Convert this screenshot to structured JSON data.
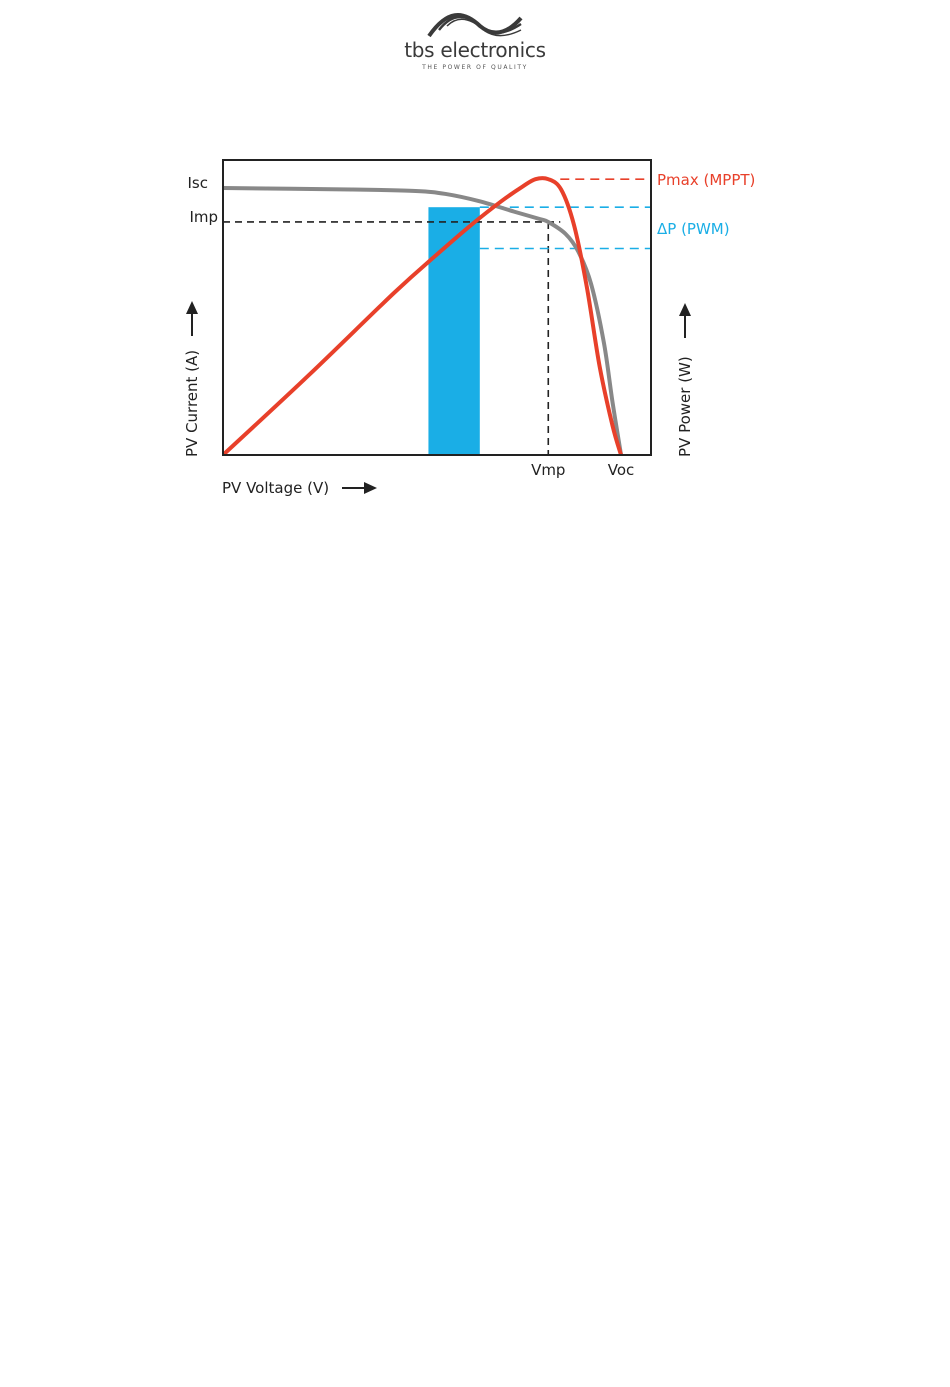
{
  "logo": {
    "name": "tbs electronics",
    "tagline": "THE POWER OF QUALITY"
  },
  "colors": {
    "current_curve": "#888888",
    "power_curve": "#e8402a",
    "pwm_band": "#1aaee6",
    "dashed_black": "#222222"
  },
  "chart_data": {
    "type": "line",
    "title": "",
    "xlabel": "PV Voltage (V)",
    "ylabel_left": "PV Current (A)",
    "ylabel_right": "PV Power (W)",
    "x_ticks": [
      "Vmp",
      "Voc"
    ],
    "y_ticks_left": [
      "Isc",
      "Imp"
    ],
    "annotations": {
      "pmax": "Pmax (MPPT)",
      "delta_p": "ΔP (PWM)"
    },
    "grid": false,
    "series": [
      {
        "key": "current",
        "x": [
          0,
          0.3,
          0.45,
          0.52,
          0.6,
          0.68,
          0.74,
          0.76,
          0.8,
          0.83,
          0.86,
          0.89,
          0.91,
          0.93
        ],
        "y": [
          0.905,
          0.9,
          0.895,
          0.885,
          0.86,
          0.825,
          0.8,
          0.79,
          0.75,
          0.69,
          0.58,
          0.38,
          0.18,
          0.0
        ]
      },
      {
        "key": "power",
        "x": [
          0,
          0.2,
          0.4,
          0.5,
          0.58,
          0.65,
          0.7,
          0.73,
          0.76,
          0.79,
          0.82,
          0.85,
          0.88,
          0.91,
          0.93
        ],
        "y": [
          0.0,
          0.27,
          0.55,
          0.68,
          0.78,
          0.86,
          0.91,
          0.935,
          0.935,
          0.9,
          0.78,
          0.57,
          0.3,
          0.1,
          0.0
        ]
      }
    ],
    "markers": {
      "vmp_x": 0.76,
      "voc_x": 0.93,
      "isc_y": 0.905,
      "imp_y": 0.79,
      "pwm_band_x": [
        0.48,
        0.6
      ],
      "pwm_high_y": 0.84,
      "pwm_low_y": 0.7,
      "pmax_y": 0.935
    }
  }
}
